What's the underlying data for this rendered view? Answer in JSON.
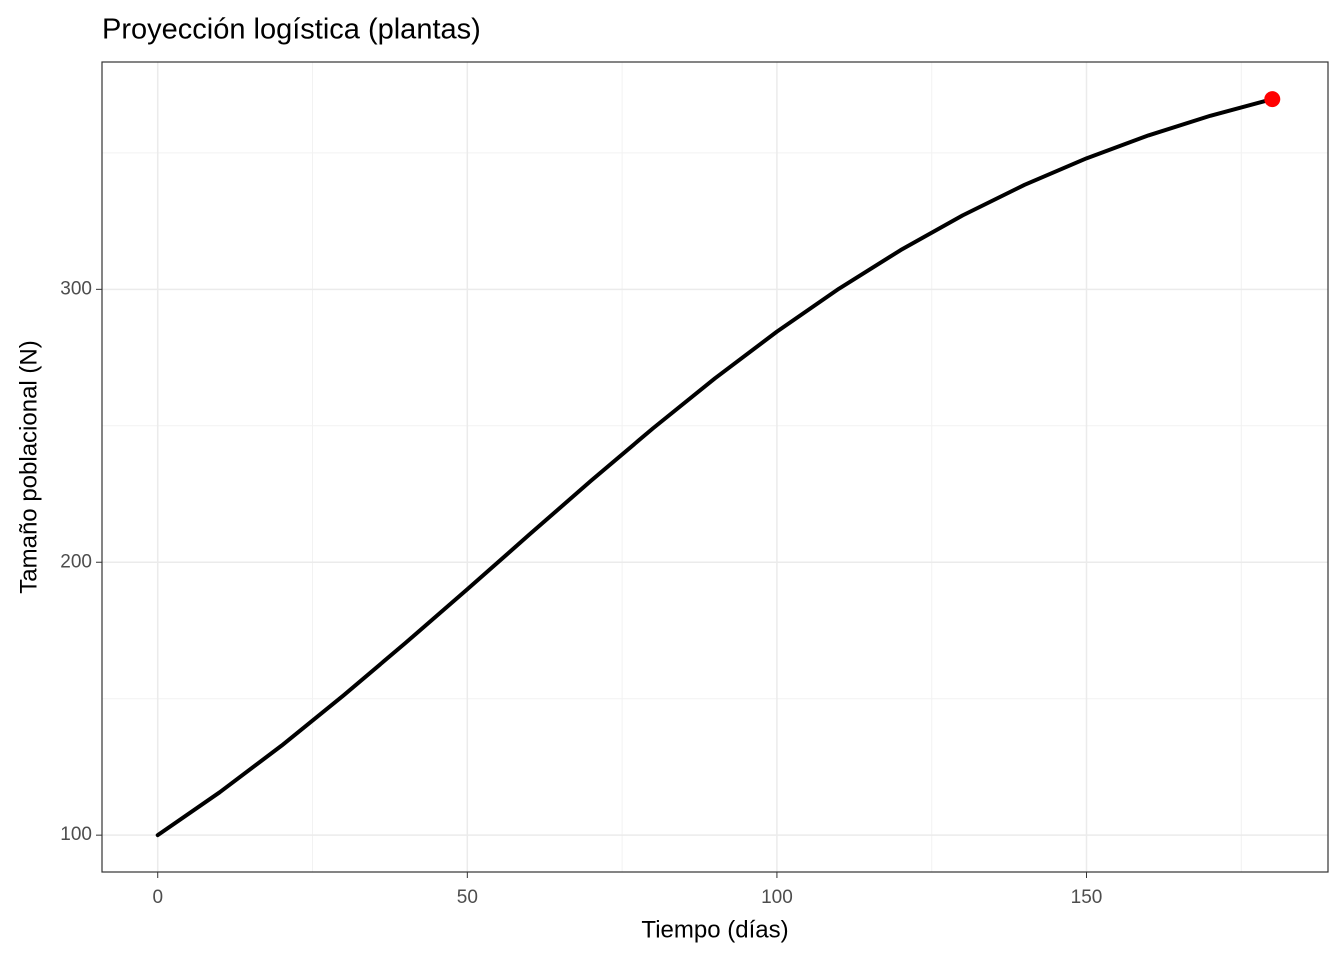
{
  "chart_data": {
    "type": "line",
    "title": "Proyección logística (plantas)",
    "x_label": "Tiempo (días)",
    "y_label": "Tamaño poblacional (N)",
    "x": [
      0,
      10,
      20,
      30,
      40,
      50,
      60,
      70,
      80,
      90,
      100,
      110,
      120,
      130,
      140,
      150,
      160,
      170,
      180
    ],
    "series": [
      {
        "color": "#000000",
        "values": [
          100,
          115.7,
          132.8,
          151.2,
          170.4,
          190.1,
          210.1,
          229.9,
          249.1,
          267.4,
          284.5,
          300.2,
          314.4,
          327.1,
          338.3,
          348.0,
          356.4,
          363.6,
          369.7
        ]
      }
    ],
    "highlight": {
      "x": 180,
      "y": 369.7,
      "color": "#ff0000"
    },
    "xlim": [
      -9,
      189
    ],
    "xticks": [
      0,
      50,
      100,
      150
    ],
    "xminorticks": [
      25,
      75,
      125,
      175
    ],
    "ylim": [
      86.5,
      383.3
    ],
    "yticks": [
      100,
      200,
      300
    ],
    "yminorticks": [
      150,
      250,
      350
    ],
    "grid": true
  }
}
